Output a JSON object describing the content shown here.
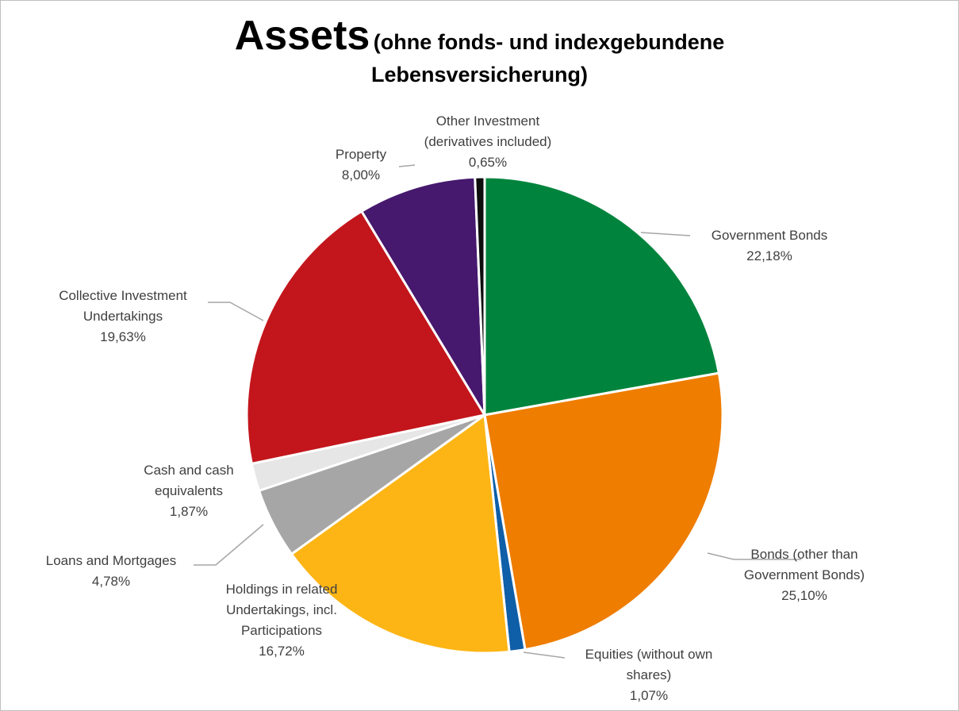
{
  "chart_data": {
    "type": "pie",
    "title": "Assets",
    "subtitle_line1": "(ohne fonds- und indexgebundene",
    "subtitle_line2": "Lebensversicherung)",
    "slices": [
      {
        "label_lines": [
          "Government Bonds"
        ],
        "value": 22.18,
        "value_label": "22,18%",
        "color": "#00843d"
      },
      {
        "label_lines": [
          "Bonds (other than",
          "Government Bonds)"
        ],
        "value": 25.1,
        "value_label": "25,10%",
        "color": "#ef7d00"
      },
      {
        "label_lines": [
          "Equities (without own",
          "shares)"
        ],
        "value": 1.07,
        "value_label": "1,07%",
        "color": "#0f5ea8"
      },
      {
        "label_lines": [
          "Holdings in related",
          "Undertakings, incl.",
          "Participations"
        ],
        "value": 16.72,
        "value_label": "16,72%",
        "color": "#fdb515"
      },
      {
        "label_lines": [
          "Loans and Mortgages"
        ],
        "value": 4.78,
        "value_label": "4,78%",
        "color": "#a6a6a6"
      },
      {
        "label_lines": [
          "Cash and cash",
          "equivalents"
        ],
        "value": 1.87,
        "value_label": "1,87%",
        "color": "#e6e6e6"
      },
      {
        "label_lines": [
          "Collective Investment",
          "Undertakings"
        ],
        "value": 19.63,
        "value_label": "19,63%",
        "color": "#c3161c"
      },
      {
        "label_lines": [
          "Property"
        ],
        "value": 8.0,
        "value_label": "8,00%",
        "color": "#46196e"
      },
      {
        "label_lines": [
          "Other Investment",
          "(derivatives included)"
        ],
        "value": 0.65,
        "value_label": "0,65%",
        "color": "#0d0d0d"
      }
    ],
    "legend": "none",
    "data_labels": "outside with leader lines"
  }
}
